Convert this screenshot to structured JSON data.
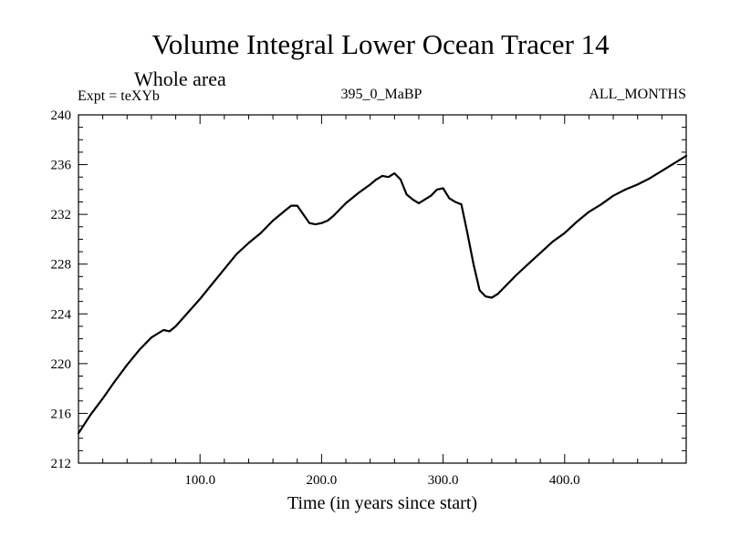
{
  "chart_data": {
    "type": "line",
    "title": "Volume Integral Lower Ocean Tracer 14",
    "subtitle": "Whole area",
    "left_label": "Expt = teXYb",
    "center_label": "395_0_MaBP",
    "right_label": "ALL_MONTHS",
    "xlabel": "Time (in years since start)",
    "ylabel": "",
    "xlim": [
      0,
      500
    ],
    "ylim": [
      212,
      240
    ],
    "xticks": [
      100,
      200,
      300,
      400
    ],
    "xtick_labels": [
      "100.0",
      "200.0",
      "300.0",
      "400.0"
    ],
    "yticks": [
      212,
      216,
      220,
      224,
      228,
      232,
      236,
      240
    ],
    "ytick_labels": [
      "212",
      "216",
      "220",
      "224",
      "228",
      "232",
      "236",
      "240"
    ],
    "grid": false,
    "legend": "none",
    "series": [
      {
        "color": "#000000",
        "x": [
          0,
          10,
          20,
          30,
          40,
          50,
          60,
          70,
          75,
          80,
          90,
          100,
          110,
          120,
          130,
          140,
          150,
          160,
          170,
          175,
          180,
          185,
          190,
          195,
          200,
          205,
          210,
          220,
          230,
          240,
          245,
          250,
          255,
          260,
          265,
          270,
          275,
          280,
          285,
          290,
          295,
          300,
          305,
          310,
          315,
          320,
          325,
          330,
          335,
          340,
          345,
          350,
          360,
          370,
          380,
          390,
          400,
          410,
          420,
          430,
          440,
          450,
          460,
          470,
          480,
          490,
          500
        ],
        "y": [
          214.4,
          215.9,
          217.2,
          218.6,
          219.9,
          221.1,
          222.1,
          222.7,
          222.6,
          223.0,
          224.1,
          225.2,
          226.4,
          227.6,
          228.8,
          229.7,
          230.5,
          231.5,
          232.3,
          232.7,
          232.7,
          232.0,
          231.3,
          231.2,
          231.3,
          231.5,
          231.9,
          232.9,
          233.7,
          234.4,
          234.8,
          235.1,
          235.0,
          235.3,
          234.8,
          233.6,
          233.2,
          232.9,
          233.2,
          233.5,
          234.0,
          234.1,
          233.3,
          233.0,
          232.8,
          230.5,
          228.0,
          225.9,
          225.4,
          225.3,
          225.6,
          226.1,
          227.1,
          228.0,
          228.9,
          229.8,
          230.5,
          231.4,
          232.2,
          232.8,
          233.5,
          234.0,
          234.4,
          234.9,
          235.5,
          236.1,
          236.7
        ]
      }
    ]
  }
}
